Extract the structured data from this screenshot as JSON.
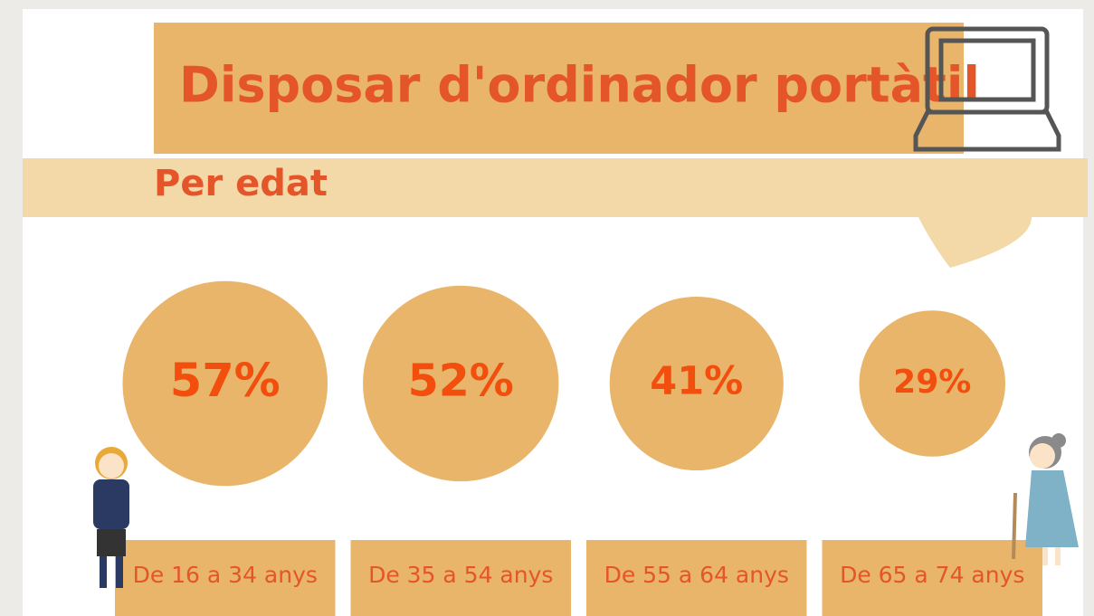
{
  "chart_data": {
    "type": "bubble",
    "title": "Disposar d'ordinador portàtil",
    "subtitle": "Per edat",
    "categories": [
      "De 16 a 34 anys",
      "De 35 a 54 anys",
      "De 55 a 64 anys",
      "De 65 a 74 anys"
    ],
    "values": [
      57,
      52,
      41,
      29
    ],
    "value_labels": [
      "57%",
      "52%",
      "41%",
      "29%"
    ],
    "color": "#e8b56a"
  }
}
